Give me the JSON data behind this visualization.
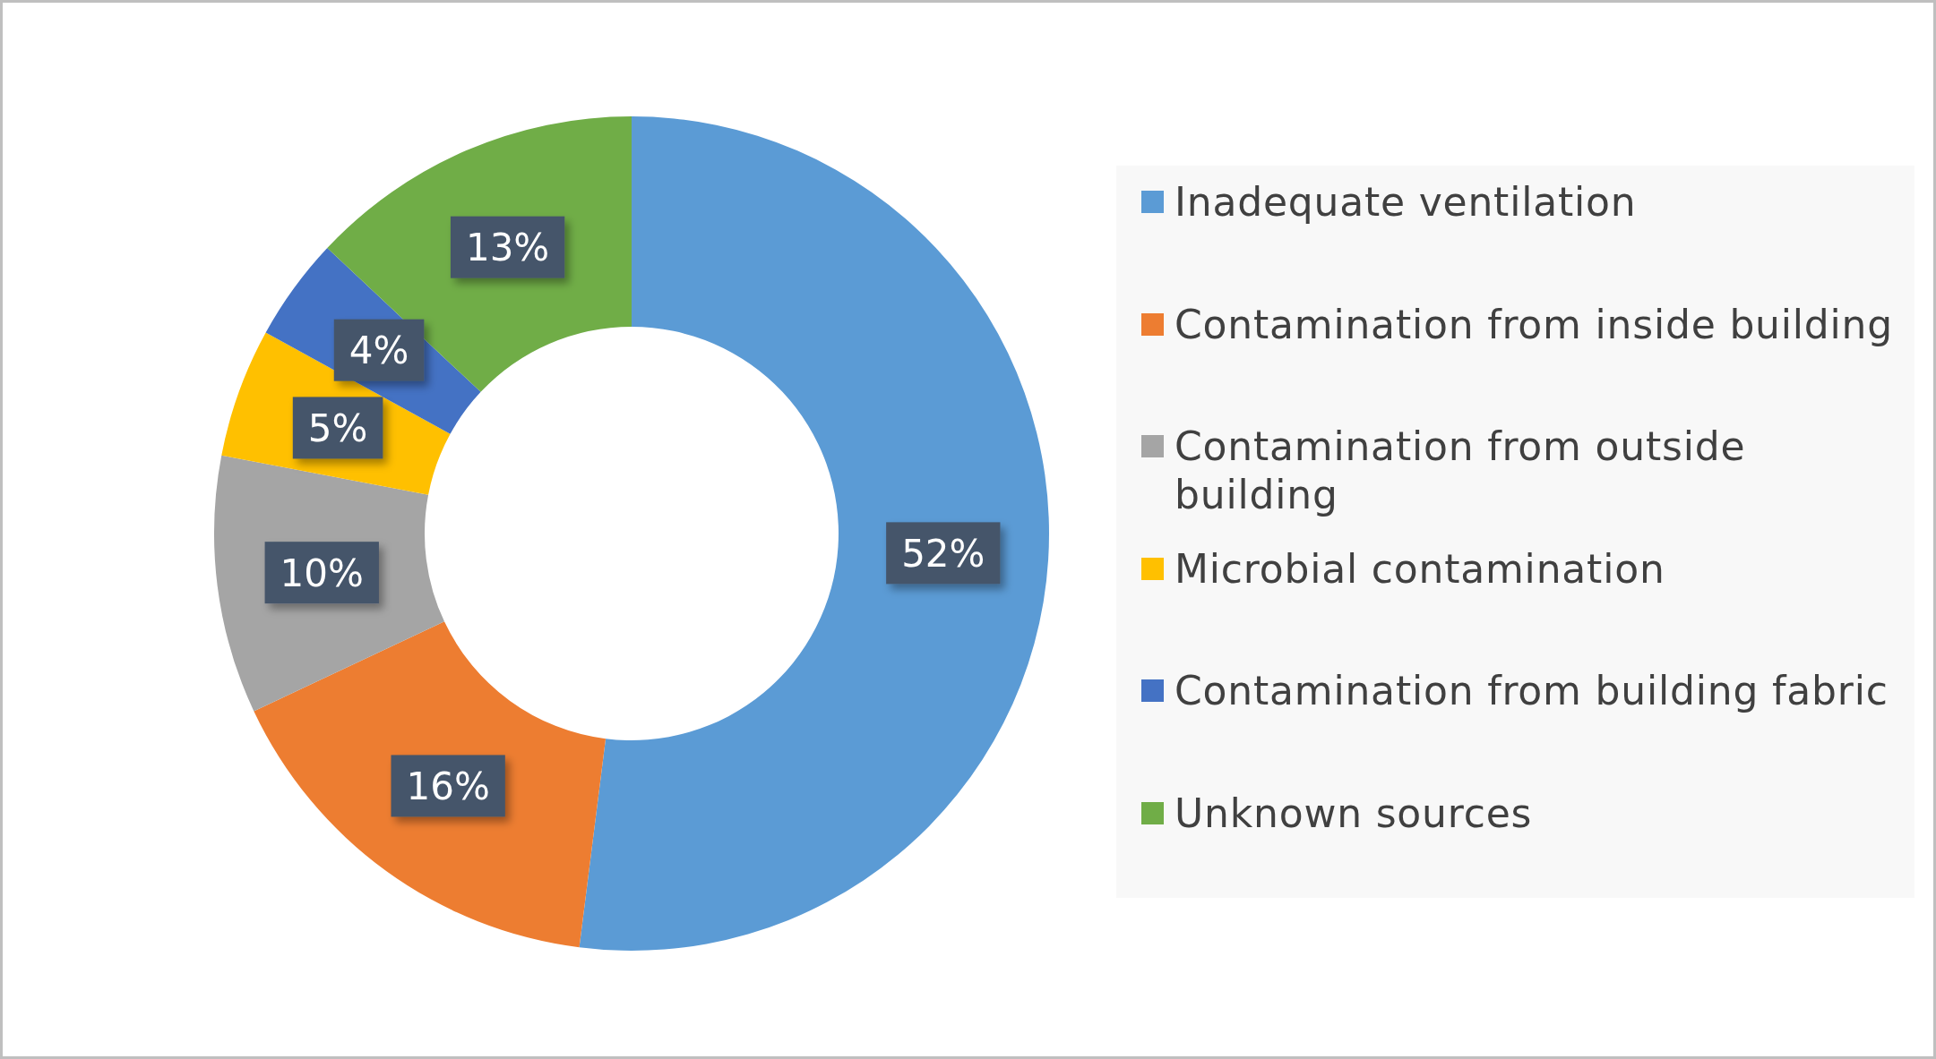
{
  "chart_data": {
    "type": "donut",
    "categories": [
      "Inadequate ventilation",
      "Contamination from inside building",
      "Contamination from outside building",
      "Microbial contamination",
      "Contamination from building fabric",
      "Unknown sources"
    ],
    "values": [
      52,
      16,
      10,
      5,
      4,
      13
    ],
    "colors": [
      "#5b9bd5",
      "#ed7d31",
      "#a5a5a5",
      "#ffc000",
      "#4472c4",
      "#70ad47"
    ],
    "value_labels": [
      "52%",
      "16%",
      "10%",
      "5%",
      "4%",
      "13%"
    ],
    "legend": "right"
  }
}
